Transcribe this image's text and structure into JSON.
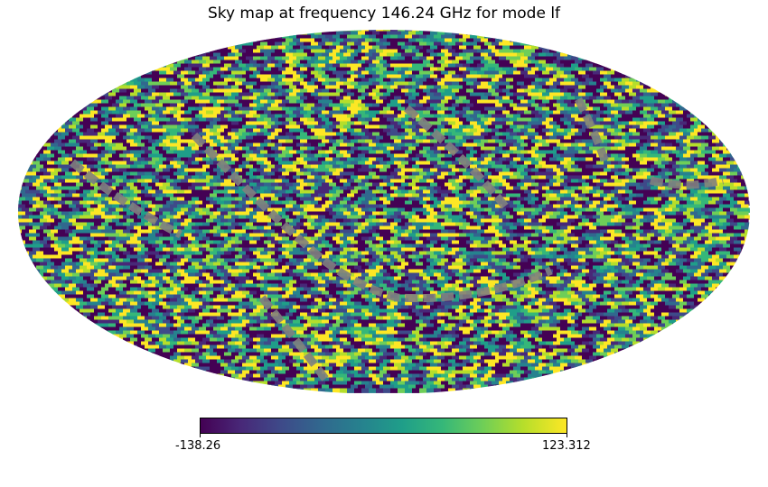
{
  "figure": {
    "title": "Sky map at frequency 146.24 GHz for mode lf",
    "projection": "Mollweide"
  },
  "colorbar": {
    "min_label": "-138.26",
    "max_label": "123.312",
    "colormap": "viridis"
  },
  "colors": {
    "masked": "#808080",
    "viridis": [
      "#440154",
      "#482878",
      "#3e4a89",
      "#31688e",
      "#26828e",
      "#1f9e89",
      "#35b779",
      "#6ece58",
      "#b5de2b",
      "#fde725"
    ]
  }
}
